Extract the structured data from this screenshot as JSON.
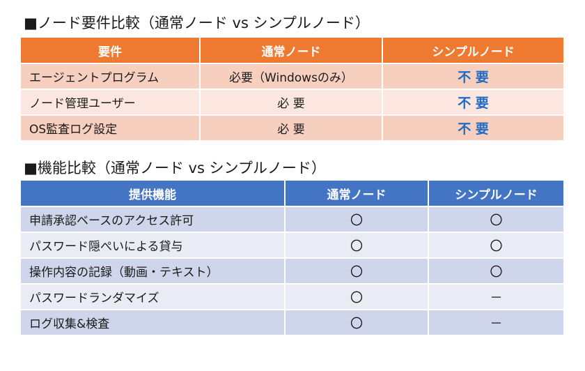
{
  "section1": {
    "title": "■ノード要件比較（通常ノード vs シンプルノード）",
    "headers": [
      "要件",
      "通常ノード",
      "シンプルノード"
    ],
    "rows": [
      {
        "label": "エージェントプログラム",
        "normal": "必要（Windowsのみ）",
        "simple": "不 要"
      },
      {
        "label": "ノード管理ユーザー",
        "normal": "必 要",
        "simple": "不 要"
      },
      {
        "label": "OS監査ログ設定",
        "normal": "必 要",
        "simple": "不 要"
      }
    ]
  },
  "section2": {
    "title": "■機能比較（通常ノード vs シンプルノード）",
    "headers": [
      "提供機能",
      "通常ノード",
      "シンプルノード"
    ],
    "rows": [
      {
        "label": "申請承認ベースのアクセス許可",
        "normal": "〇",
        "simple": "〇"
      },
      {
        "label": "パスワード隠ぺいによる貸与",
        "normal": "〇",
        "simple": "〇"
      },
      {
        "label": "操作内容の記録（動画・テキスト）",
        "normal": "〇",
        "simple": "〇"
      },
      {
        "label": "パスワードランダマイズ",
        "normal": "〇",
        "simple": "－"
      },
      {
        "label": "ログ収集&検査",
        "normal": "〇",
        "simple": "－"
      }
    ]
  },
  "colors": {
    "section1_header": "#ee7a31",
    "section1_row_dark": "#f7cfbf",
    "section1_row_light": "#fbe7e0",
    "section1_emphasis_text": "#1f6bc3",
    "section2_header": "#4475c5",
    "section2_row_dark": "#cfd5ea",
    "section2_row_light": "#e9ebf5"
  }
}
